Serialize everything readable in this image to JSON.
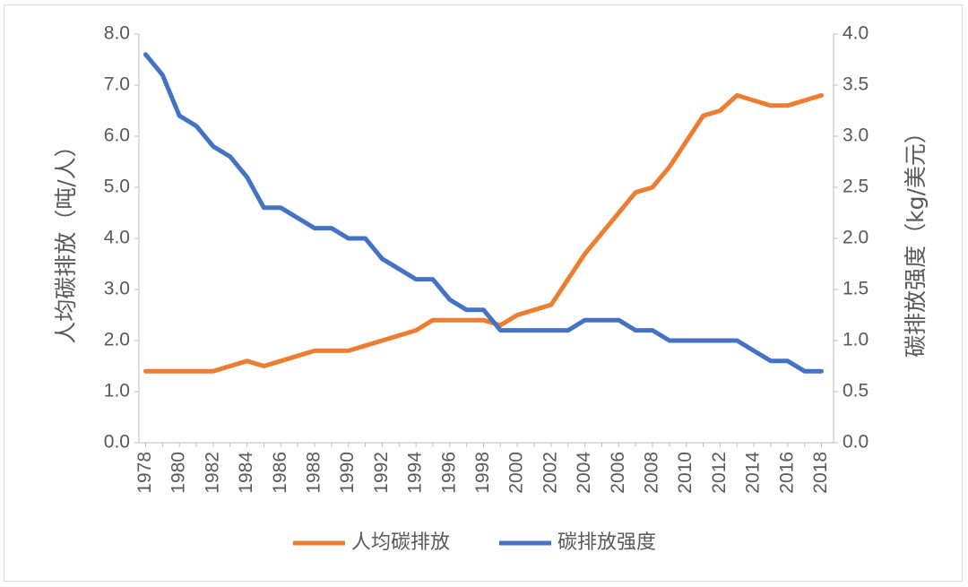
{
  "chart_data": {
    "type": "line",
    "title": "",
    "xlabel": "",
    "ylabel": "人均碳排放（吨/人）",
    "y2label": "碳排放强度（kg/美元）",
    "ylim": [
      0,
      8
    ],
    "y2lim": [
      0,
      4
    ],
    "yticks": [
      "0.0",
      "1.0",
      "2.0",
      "3.0",
      "4.0",
      "5.0",
      "6.0",
      "7.0",
      "8.0"
    ],
    "y2ticks": [
      "0.0",
      "0.5",
      "1.0",
      "1.5",
      "2.0",
      "2.5",
      "3.0",
      "3.5",
      "4.0"
    ],
    "x": [
      1978,
      1979,
      1980,
      1981,
      1982,
      1983,
      1984,
      1985,
      1986,
      1987,
      1988,
      1989,
      1990,
      1991,
      1992,
      1993,
      1994,
      1995,
      1996,
      1997,
      1998,
      1999,
      2000,
      2001,
      2002,
      2003,
      2004,
      2005,
      2006,
      2007,
      2008,
      2009,
      2010,
      2011,
      2012,
      2013,
      2014,
      2015,
      2016,
      2017,
      2018
    ],
    "xticks": [
      "1978",
      "1980",
      "1982",
      "1984",
      "1986",
      "1988",
      "1990",
      "1992",
      "1994",
      "1996",
      "1998",
      "2000",
      "2002",
      "2004",
      "2006",
      "2008",
      "2010",
      "2012",
      "2014",
      "2016",
      "2018"
    ],
    "grid": false,
    "legend_position": "bottom",
    "series": [
      {
        "name": "人均碳排放",
        "axis": "left",
        "color": "#ED7D31",
        "values": [
          1.4,
          1.4,
          1.4,
          1.4,
          1.4,
          1.5,
          1.6,
          1.5,
          1.6,
          1.7,
          1.8,
          1.8,
          1.8,
          1.9,
          2.0,
          2.1,
          2.2,
          2.4,
          2.4,
          2.4,
          2.4,
          2.3,
          2.5,
          2.6,
          2.7,
          3.2,
          3.7,
          4.1,
          4.5,
          4.9,
          5.0,
          5.4,
          5.9,
          6.4,
          6.5,
          6.8,
          6.7,
          6.6,
          6.6,
          6.7,
          6.8
        ]
      },
      {
        "name": "碳排放强度",
        "axis": "right",
        "color": "#4472C4",
        "values": [
          3.8,
          3.6,
          3.2,
          3.1,
          2.9,
          2.8,
          2.6,
          2.3,
          2.3,
          2.2,
          2.1,
          2.1,
          2.0,
          2.0,
          1.8,
          1.7,
          1.6,
          1.6,
          1.4,
          1.3,
          1.3,
          1.1,
          1.1,
          1.1,
          1.1,
          1.1,
          1.2,
          1.2,
          1.2,
          1.1,
          1.1,
          1.0,
          1.0,
          1.0,
          1.0,
          1.0,
          0.9,
          0.8,
          0.8,
          0.7,
          0.7
        ]
      }
    ]
  }
}
